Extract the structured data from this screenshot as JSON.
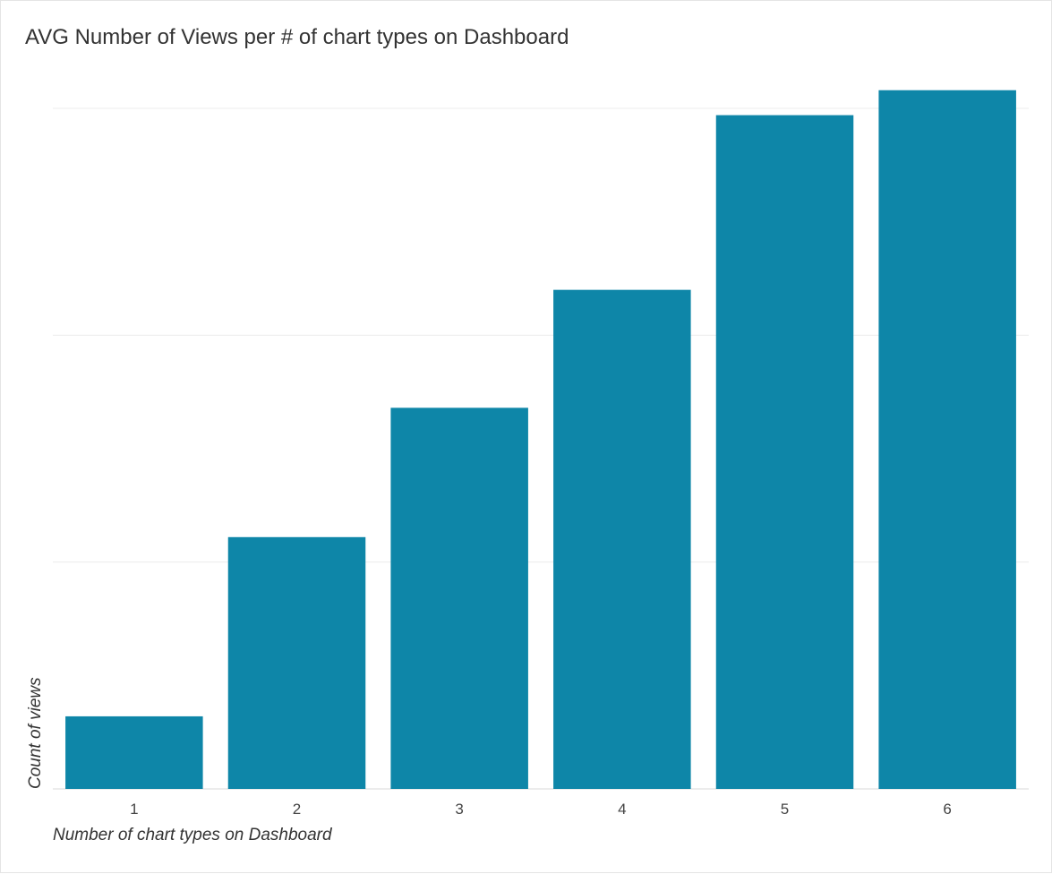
{
  "chart_data": {
    "type": "bar",
    "title": "AVG Number of Views per # of chart types on Dashboard",
    "xlabel": "Number of chart types on Dashboard",
    "ylabel": "Count of views",
    "categories": [
      "1",
      "2",
      "3",
      "4",
      "5",
      "6"
    ],
    "values": [
      3.2,
      11.1,
      16.8,
      22.0,
      29.7,
      30.8
    ],
    "ylim": [
      0,
      30
    ],
    "yticks": [
      0,
      10,
      20,
      30
    ],
    "show_y_tick_labels": false,
    "grid": true,
    "legend": "none",
    "bar_color": "#0e86a8",
    "grid_color": "#ececec"
  }
}
